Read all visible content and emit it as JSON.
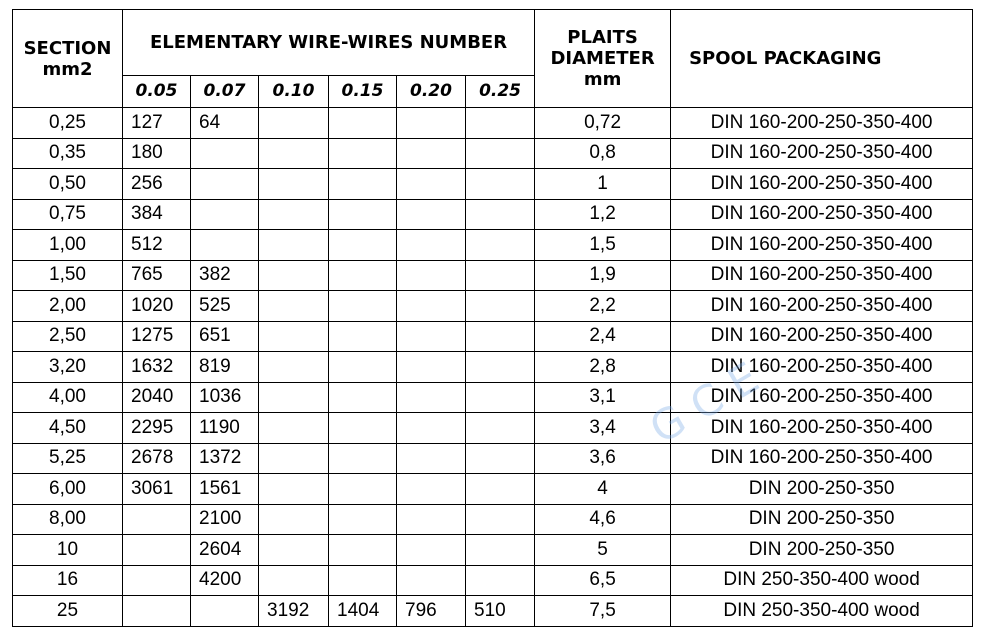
{
  "header": {
    "section": [
      "SECTION",
      "mm2"
    ],
    "wires_title": "ELEMENTARY WIRE-WIRES NUMBER",
    "wire_sizes": [
      "0.05",
      "0.07",
      "0.10",
      "0.15",
      "0.20",
      "0.25"
    ],
    "plaits": [
      "PLAITS",
      "DIAMETER",
      "mm"
    ],
    "spool": "SPOOL PACKAGING"
  },
  "table": {
    "rows": [
      [
        "0,25",
        "127",
        "64",
        null,
        null,
        null,
        null,
        "0,72",
        "DIN 160-200-250-350-400"
      ],
      [
        "0,35",
        "180",
        null,
        null,
        null,
        null,
        null,
        "0,8",
        "DIN 160-200-250-350-400"
      ],
      [
        "0,50",
        "256",
        null,
        null,
        null,
        null,
        null,
        "1",
        "DIN 160-200-250-350-400"
      ],
      [
        "0,75",
        "384",
        null,
        null,
        null,
        null,
        null,
        "1,2",
        "DIN 160-200-250-350-400"
      ],
      [
        "1,00",
        "512",
        null,
        null,
        null,
        null,
        null,
        "1,5",
        "DIN 160-200-250-350-400"
      ],
      [
        "1,50",
        "765",
        "382",
        null,
        null,
        null,
        null,
        "1,9",
        "DIN 160-200-250-350-400"
      ],
      [
        "2,00",
        "1020",
        "525",
        null,
        null,
        null,
        null,
        "2,2",
        "DIN 160-200-250-350-400"
      ],
      [
        "2,50",
        "1275",
        "651",
        null,
        null,
        null,
        null,
        "2,4",
        "DIN 160-200-250-350-400"
      ],
      [
        "3,20",
        "1632",
        "819",
        null,
        null,
        null,
        null,
        "2,8",
        "DIN 160-200-250-350-400"
      ],
      [
        "4,00",
        "2040",
        "1036",
        null,
        null,
        null,
        null,
        "3,1",
        "DIN 160-200-250-350-400"
      ],
      [
        "4,50",
        "2295",
        "1190",
        null,
        null,
        null,
        null,
        "3,4",
        "DIN 160-200-250-350-400"
      ],
      [
        "5,25",
        "2678",
        "1372",
        null,
        null,
        null,
        null,
        "3,6",
        "DIN 160-200-250-350-400"
      ],
      [
        "6,00",
        "3061",
        "1561",
        null,
        null,
        null,
        null,
        "4",
        "DIN 200-250-350"
      ],
      [
        "8,00",
        null,
        "2100",
        null,
        null,
        null,
        null,
        "4,6",
        "DIN 200-250-350"
      ],
      [
        "10",
        null,
        "2604",
        null,
        null,
        null,
        null,
        "5",
        "DIN 200-250-350"
      ],
      [
        "16",
        null,
        "4200",
        null,
        null,
        null,
        null,
        "6,5",
        "DIN 250-350-400 wood"
      ],
      [
        "25",
        null,
        null,
        "3192",
        "1404",
        "796",
        "510",
        "7,5",
        "DIN 250-350-400 wood"
      ]
    ]
  },
  "watermark": "GCE"
}
